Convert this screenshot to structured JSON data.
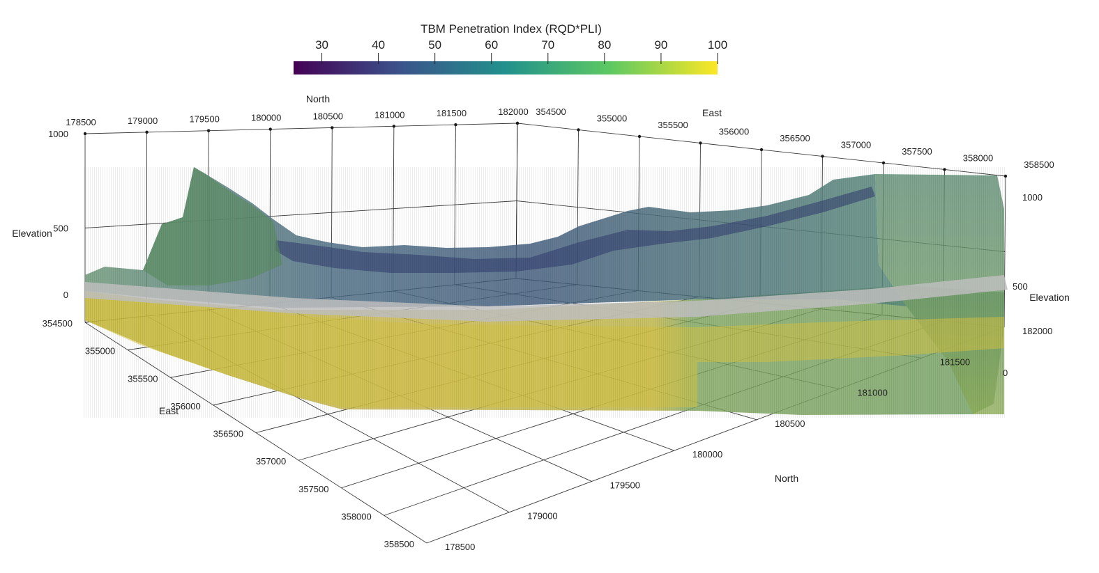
{
  "colorbar": {
    "title": "TBM Penetration Index (RQD*PLI)",
    "ticks": [
      "30",
      "40",
      "50",
      "60",
      "70",
      "80",
      "90",
      "100"
    ],
    "range": [
      25,
      100
    ],
    "colormap": [
      "#440154",
      "#3b528b",
      "#21918c",
      "#5ec962",
      "#fde725"
    ]
  },
  "axes": {
    "north_title": "North",
    "east_title": "East",
    "elevation_title": "Elevation",
    "north_ticks": [
      "178500",
      "179000",
      "179500",
      "180000",
      "180500",
      "181000",
      "181500",
      "182000"
    ],
    "east_ticks": [
      "354500",
      "355000",
      "355500",
      "356000",
      "356500",
      "357000",
      "357500",
      "358000",
      "358500"
    ],
    "elevation_ticks_left": [
      "1000",
      "500",
      "0"
    ],
    "elevation_ticks_right": [
      "1000",
      "500",
      "0"
    ]
  },
  "colors": {
    "grid": "#1a1a1a",
    "tunnel": "#b9b9b9"
  }
}
